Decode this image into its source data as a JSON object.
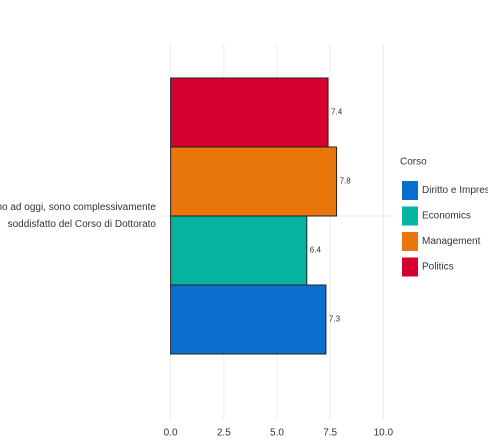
{
  "chart_data": {
    "type": "bar",
    "orientation": "horizontal",
    "categories": [
      "Sino ad oggi, sono complessivamente soddisfatto del Corso di Dottorato"
    ],
    "series": [
      {
        "name": "Diritto e Impresa",
        "color": "#0a6fcf",
        "values": [
          7.3
        ]
      },
      {
        "name": "Economics",
        "color": "#05b3a0",
        "values": [
          6.4
        ]
      },
      {
        "name": "Management",
        "color": "#e8760a",
        "values": [
          7.8
        ]
      },
      {
        "name": "Politics",
        "color": "#d5002f",
        "values": [
          7.4
        ]
      }
    ],
    "legend_title": "Corso",
    "xlim": [
      -0.5,
      10.5
    ],
    "xticks": [
      {
        "value": 0,
        "label": "0.0"
      },
      {
        "value": 2.5,
        "label": "2.5"
      },
      {
        "value": 5,
        "label": "5.0"
      },
      {
        "value": 7.5,
        "label": "7.5"
      },
      {
        "value": 10,
        "label": "10.0"
      }
    ],
    "grid": true,
    "legend_position": "right"
  }
}
